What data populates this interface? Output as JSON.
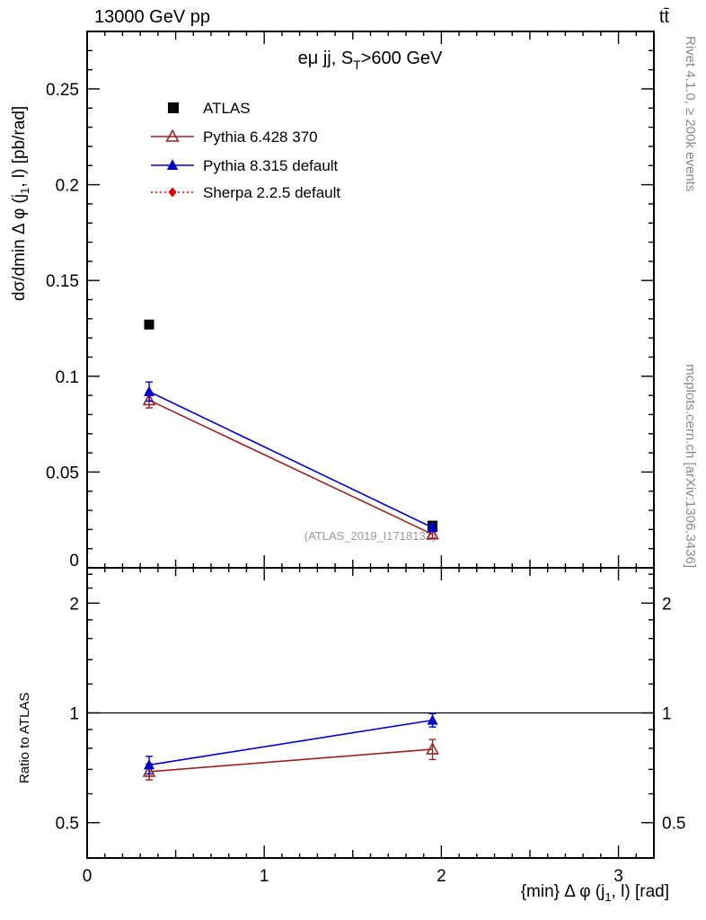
{
  "header": {
    "left": "13000 GeV pp",
    "right": "tt̄"
  },
  "rivet_label": "Rivet 4.1.0, ≥ 200k events",
  "mcplots_label": "mcplots.cern.ch [arXiv:1306.3436]",
  "watermark": "(ATLAS_2019_I1718132)",
  "title_rich": {
    "pre": "eμ jj, S",
    "sub": "T",
    "post": ">600 GeV"
  },
  "xlabel_rich": {
    "pre": "{min} Δ φ (j",
    "sub": "1",
    "post": ", l) [rad]"
  },
  "ylabel_rich": {
    "pre": "dσ/dmin Δ φ (j",
    "sub": "1",
    "post": ", l) [pb/rad]"
  },
  "ratio_ylabel": "Ratio to ATLAS",
  "chart_data": {
    "type": "line",
    "title": "eμ jj, S_T>600 GeV",
    "xlabel": "{min} Δ φ (j_1, l) [rad]",
    "ylabel": "dσ/dmin Δ φ (j_1, l) [pb/rad]",
    "ratio_ylabel": "Ratio to ATLAS",
    "xlim": [
      0,
      3.2
    ],
    "ylim_main": [
      0,
      0.28
    ],
    "ylim_ratio": [
      0.4,
      2.5
    ],
    "ratio_scale": "log",
    "grid": false,
    "legend_position": "top-left",
    "x_ticks": [
      0,
      1,
      2,
      3
    ],
    "y_ticks_main": [
      0,
      0.05,
      0.1,
      0.15,
      0.2,
      0.25
    ],
    "y_ticks_ratio": [
      0.5,
      1,
      2
    ],
    "series": [
      {
        "name": "ATLAS",
        "marker": "square-filled",
        "color": "#000000",
        "line": "none",
        "show_in_ratio": false,
        "x": [
          0.35,
          1.95
        ],
        "y": [
          0.127,
          0.022
        ],
        "yerr": [
          0,
          0
        ],
        "ratio": [
          1.0,
          1.0
        ],
        "ratio_err": [
          0,
          0
        ]
      },
      {
        "name": "Pythia 6.428 370",
        "marker": "triangle-open",
        "color": "#992222",
        "line": "solid",
        "show_in_ratio": true,
        "x": [
          0.35,
          1.95
        ],
        "y": [
          0.0875,
          0.0175
        ],
        "yerr": [
          0.004,
          0.002
        ],
        "ratio": [
          0.69,
          0.795
        ],
        "ratio_err": [
          0.035,
          0.05
        ]
      },
      {
        "name": "Pythia 8.315 default",
        "marker": "triangle-filled",
        "color": "#0000cc",
        "line": "solid",
        "show_in_ratio": true,
        "x": [
          0.35,
          1.95
        ],
        "y": [
          0.092,
          0.021
        ],
        "yerr": [
          0.005,
          0.002
        ],
        "ratio": [
          0.72,
          0.955
        ],
        "ratio_err": [
          0.04,
          0.04
        ]
      },
      {
        "name": "Sherpa 2.2.5 default",
        "marker": "diamond-filled",
        "color": "#e00000",
        "line": "dotted",
        "show_in_ratio": true,
        "x": [],
        "y": [],
        "yerr": [],
        "ratio": [],
        "ratio_err": []
      }
    ]
  }
}
